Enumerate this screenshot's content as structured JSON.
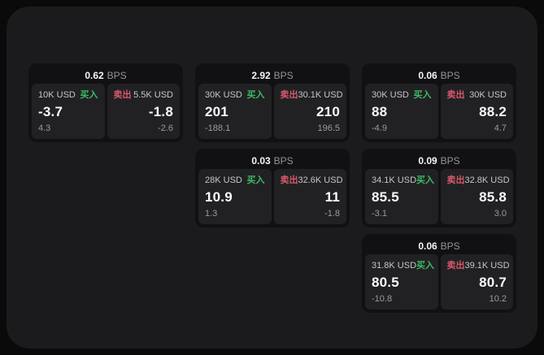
{
  "page": {
    "background_color": "#0a0a0a",
    "surface_color": "#1b1b1d"
  },
  "colors": {
    "buy_green": "#3dbb62",
    "sell_red": "#d7596a",
    "card_background": "#111113",
    "panel_background": "#212124"
  },
  "cards": [
    {
      "bps": "0.62",
      "unit": "BPS",
      "buy": {
        "amount": "10K USD",
        "side": "买入",
        "price": "-3.7",
        "delta": "4.3"
      },
      "sell": {
        "side": "卖出",
        "amount": "5.5K USD",
        "price": "-1.8",
        "delta": "-2.6"
      }
    },
    {
      "bps": "2.92",
      "unit": "BPS",
      "buy": {
        "amount": "30K USD",
        "side": "买入",
        "price": "201",
        "delta": "-188.1"
      },
      "sell": {
        "side": "卖出",
        "amount": "30.1K USD",
        "price": "210",
        "delta": "196.5"
      }
    },
    {
      "bps": "0.06",
      "unit": "BPS",
      "buy": {
        "amount": "30K USD",
        "side": "买入",
        "price": "88",
        "delta": "-4.9"
      },
      "sell": {
        "side": "卖出",
        "amount": "30K USD",
        "price": "88.2",
        "delta": "4.7"
      }
    },
    {
      "bps": "0.03",
      "unit": "BPS",
      "buy": {
        "amount": "28K USD",
        "side": "买入",
        "price": "10.9",
        "delta": "1.3"
      },
      "sell": {
        "side": "卖出",
        "amount": "32.6K USD",
        "price": "11",
        "delta": "-1.8"
      }
    },
    {
      "bps": "0.09",
      "unit": "BPS",
      "buy": {
        "amount": "34.1K USD",
        "side": "买入",
        "price": "85.5",
        "delta": "-3.1"
      },
      "sell": {
        "side": "卖出",
        "amount": "32.8K USD",
        "price": "85.8",
        "delta": "3.0"
      }
    },
    {
      "bps": "0.06",
      "unit": "BPS",
      "buy": {
        "amount": "31.8K USD",
        "side": "买入",
        "price": "80.5",
        "delta": "-10.8"
      },
      "sell": {
        "side": "卖出",
        "amount": "39.1K USD",
        "price": "80.7",
        "delta": "10.2"
      }
    }
  ]
}
